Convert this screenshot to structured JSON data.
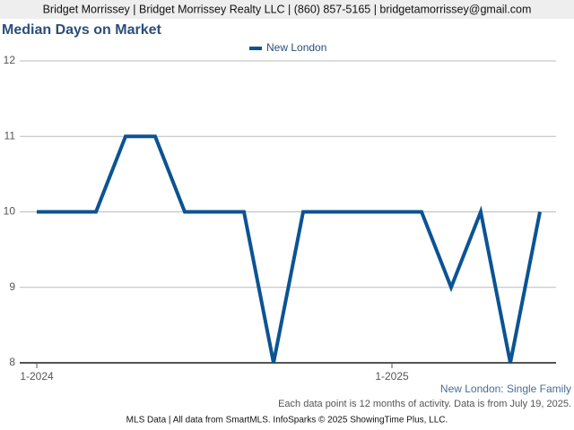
{
  "header": "Bridget Morrissey | Bridget Morrissey Realty LLC | (860) 857-5165 | bridgetamorrissey@gmail.com",
  "footer": "MLS Data | All data from SmartMLS. InfoSparks © 2025 ShowingTime Plus, LLC.",
  "chart_data": {
    "type": "line",
    "title": "Median Days on Market",
    "subtitle": "New London: Single Family",
    "note": "Each data point is 12 months of activity. Data is from July 19, 2025.",
    "categories": [
      "1-2024",
      null,
      null,
      null,
      null,
      null,
      null,
      null,
      null,
      null,
      null,
      null,
      "1-2025",
      null,
      null,
      null,
      null,
      null
    ],
    "series": [
      {
        "name": "New London",
        "color": "#0b5394",
        "values": [
          10,
          10,
          10,
          11,
          11,
          10,
          10,
          10,
          8,
          10,
          10,
          10,
          10,
          10,
          9,
          10,
          8,
          10
        ]
      }
    ],
    "ylim": [
      8,
      12
    ],
    "yticks": [
      8,
      9,
      10,
      11,
      12
    ],
    "grid": true
  }
}
